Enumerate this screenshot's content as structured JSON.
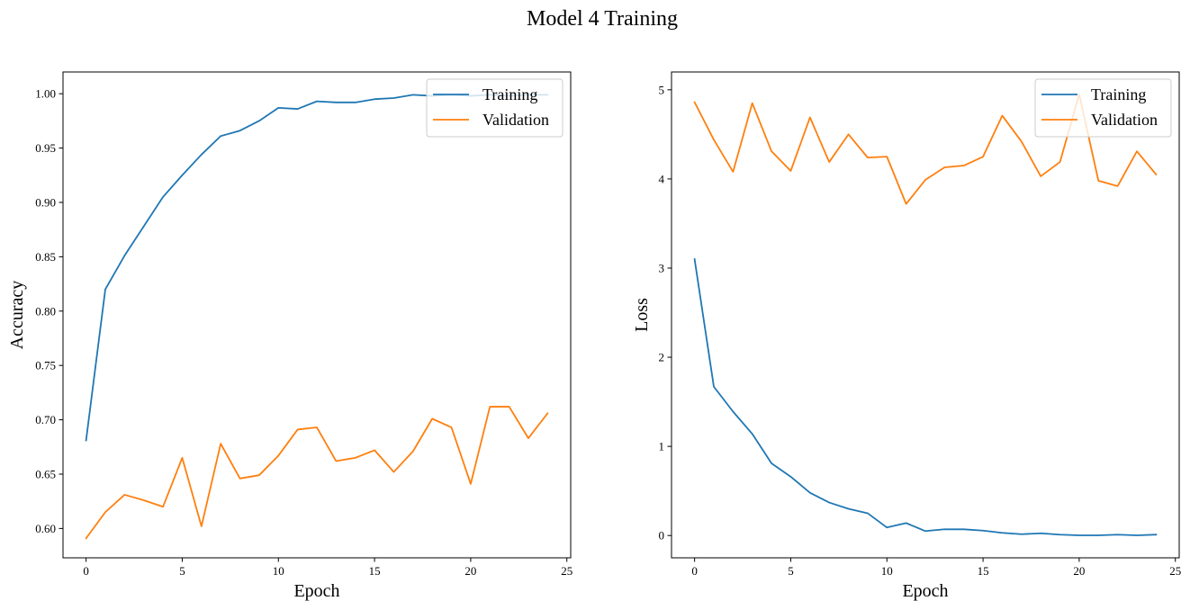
{
  "figure": {
    "title": "Model 4 Training"
  },
  "chart_data": [
    {
      "type": "line",
      "title": "",
      "xlabel": "Epoch",
      "ylabel": "Accuracy",
      "xlim": [
        -1.2,
        25.2
      ],
      "ylim": [
        0.573,
        1.02
      ],
      "xticks": [
        0,
        5,
        10,
        15,
        20,
        25
      ],
      "yticks": [
        0.6,
        0.65,
        0.7,
        0.75,
        0.8,
        0.85,
        0.9,
        0.95,
        1.0
      ],
      "ytick_labels": [
        "0.60",
        "0.65",
        "0.70",
        "0.75",
        "0.80",
        "0.85",
        "0.90",
        "0.95",
        "1.00"
      ],
      "legend_position": "top-right",
      "grid": false,
      "x": [
        0,
        1,
        2,
        3,
        4,
        5,
        6,
        7,
        8,
        9,
        10,
        11,
        12,
        13,
        14,
        15,
        16,
        17,
        18,
        19,
        20,
        21,
        22,
        23,
        24
      ],
      "series": [
        {
          "name": "Training",
          "color": "#1f77b4",
          "values": [
            0.681,
            0.82,
            0.851,
            0.878,
            0.905,
            0.925,
            0.944,
            0.961,
            0.966,
            0.975,
            0.987,
            0.986,
            0.993,
            0.992,
            0.992,
            0.995,
            0.996,
            0.999,
            0.998,
            0.999,
            0.998,
            0.999,
            0.998,
            0.999,
            0.999
          ]
        },
        {
          "name": "Validation",
          "color": "#ff7f0e",
          "values": [
            0.591,
            0.615,
            0.631,
            0.626,
            0.62,
            0.665,
            0.602,
            0.678,
            0.646,
            0.649,
            0.667,
            0.691,
            0.693,
            0.662,
            0.665,
            0.672,
            0.652,
            0.671,
            0.701,
            0.693,
            0.641,
            0.712,
            0.712,
            0.683,
            0.706
          ]
        }
      ]
    },
    {
      "type": "line",
      "title": "",
      "xlabel": "Epoch",
      "ylabel": "Loss",
      "xlim": [
        -1.2,
        25.2
      ],
      "ylim": [
        -0.25,
        5.2
      ],
      "xticks": [
        0,
        5,
        10,
        15,
        20,
        25
      ],
      "yticks": [
        0,
        1,
        2,
        3,
        4,
        5
      ],
      "ytick_labels": [
        "0",
        "1",
        "2",
        "3",
        "4",
        "5"
      ],
      "legend_position": "top-right",
      "grid": false,
      "x": [
        0,
        1,
        2,
        3,
        4,
        5,
        6,
        7,
        8,
        9,
        10,
        11,
        12,
        13,
        14,
        15,
        16,
        17,
        18,
        19,
        20,
        21,
        22,
        23,
        24
      ],
      "series": [
        {
          "name": "Training",
          "color": "#1f77b4",
          "values": [
            3.1,
            1.67,
            1.39,
            1.14,
            0.81,
            0.66,
            0.48,
            0.37,
            0.3,
            0.25,
            0.09,
            0.14,
            0.05,
            0.07,
            0.07,
            0.055,
            0.03,
            0.015,
            0.025,
            0.01,
            0.002,
            0.002,
            0.01,
            0.002,
            0.01
          ]
        },
        {
          "name": "Validation",
          "color": "#ff7f0e",
          "values": [
            4.86,
            4.44,
            4.08,
            4.85,
            4.31,
            4.09,
            4.69,
            4.19,
            4.5,
            4.24,
            4.25,
            3.72,
            3.99,
            4.13,
            4.15,
            4.25,
            4.71,
            4.42,
            4.03,
            4.19,
            4.95,
            3.98,
            3.92,
            4.31,
            4.05
          ]
        }
      ]
    }
  ]
}
